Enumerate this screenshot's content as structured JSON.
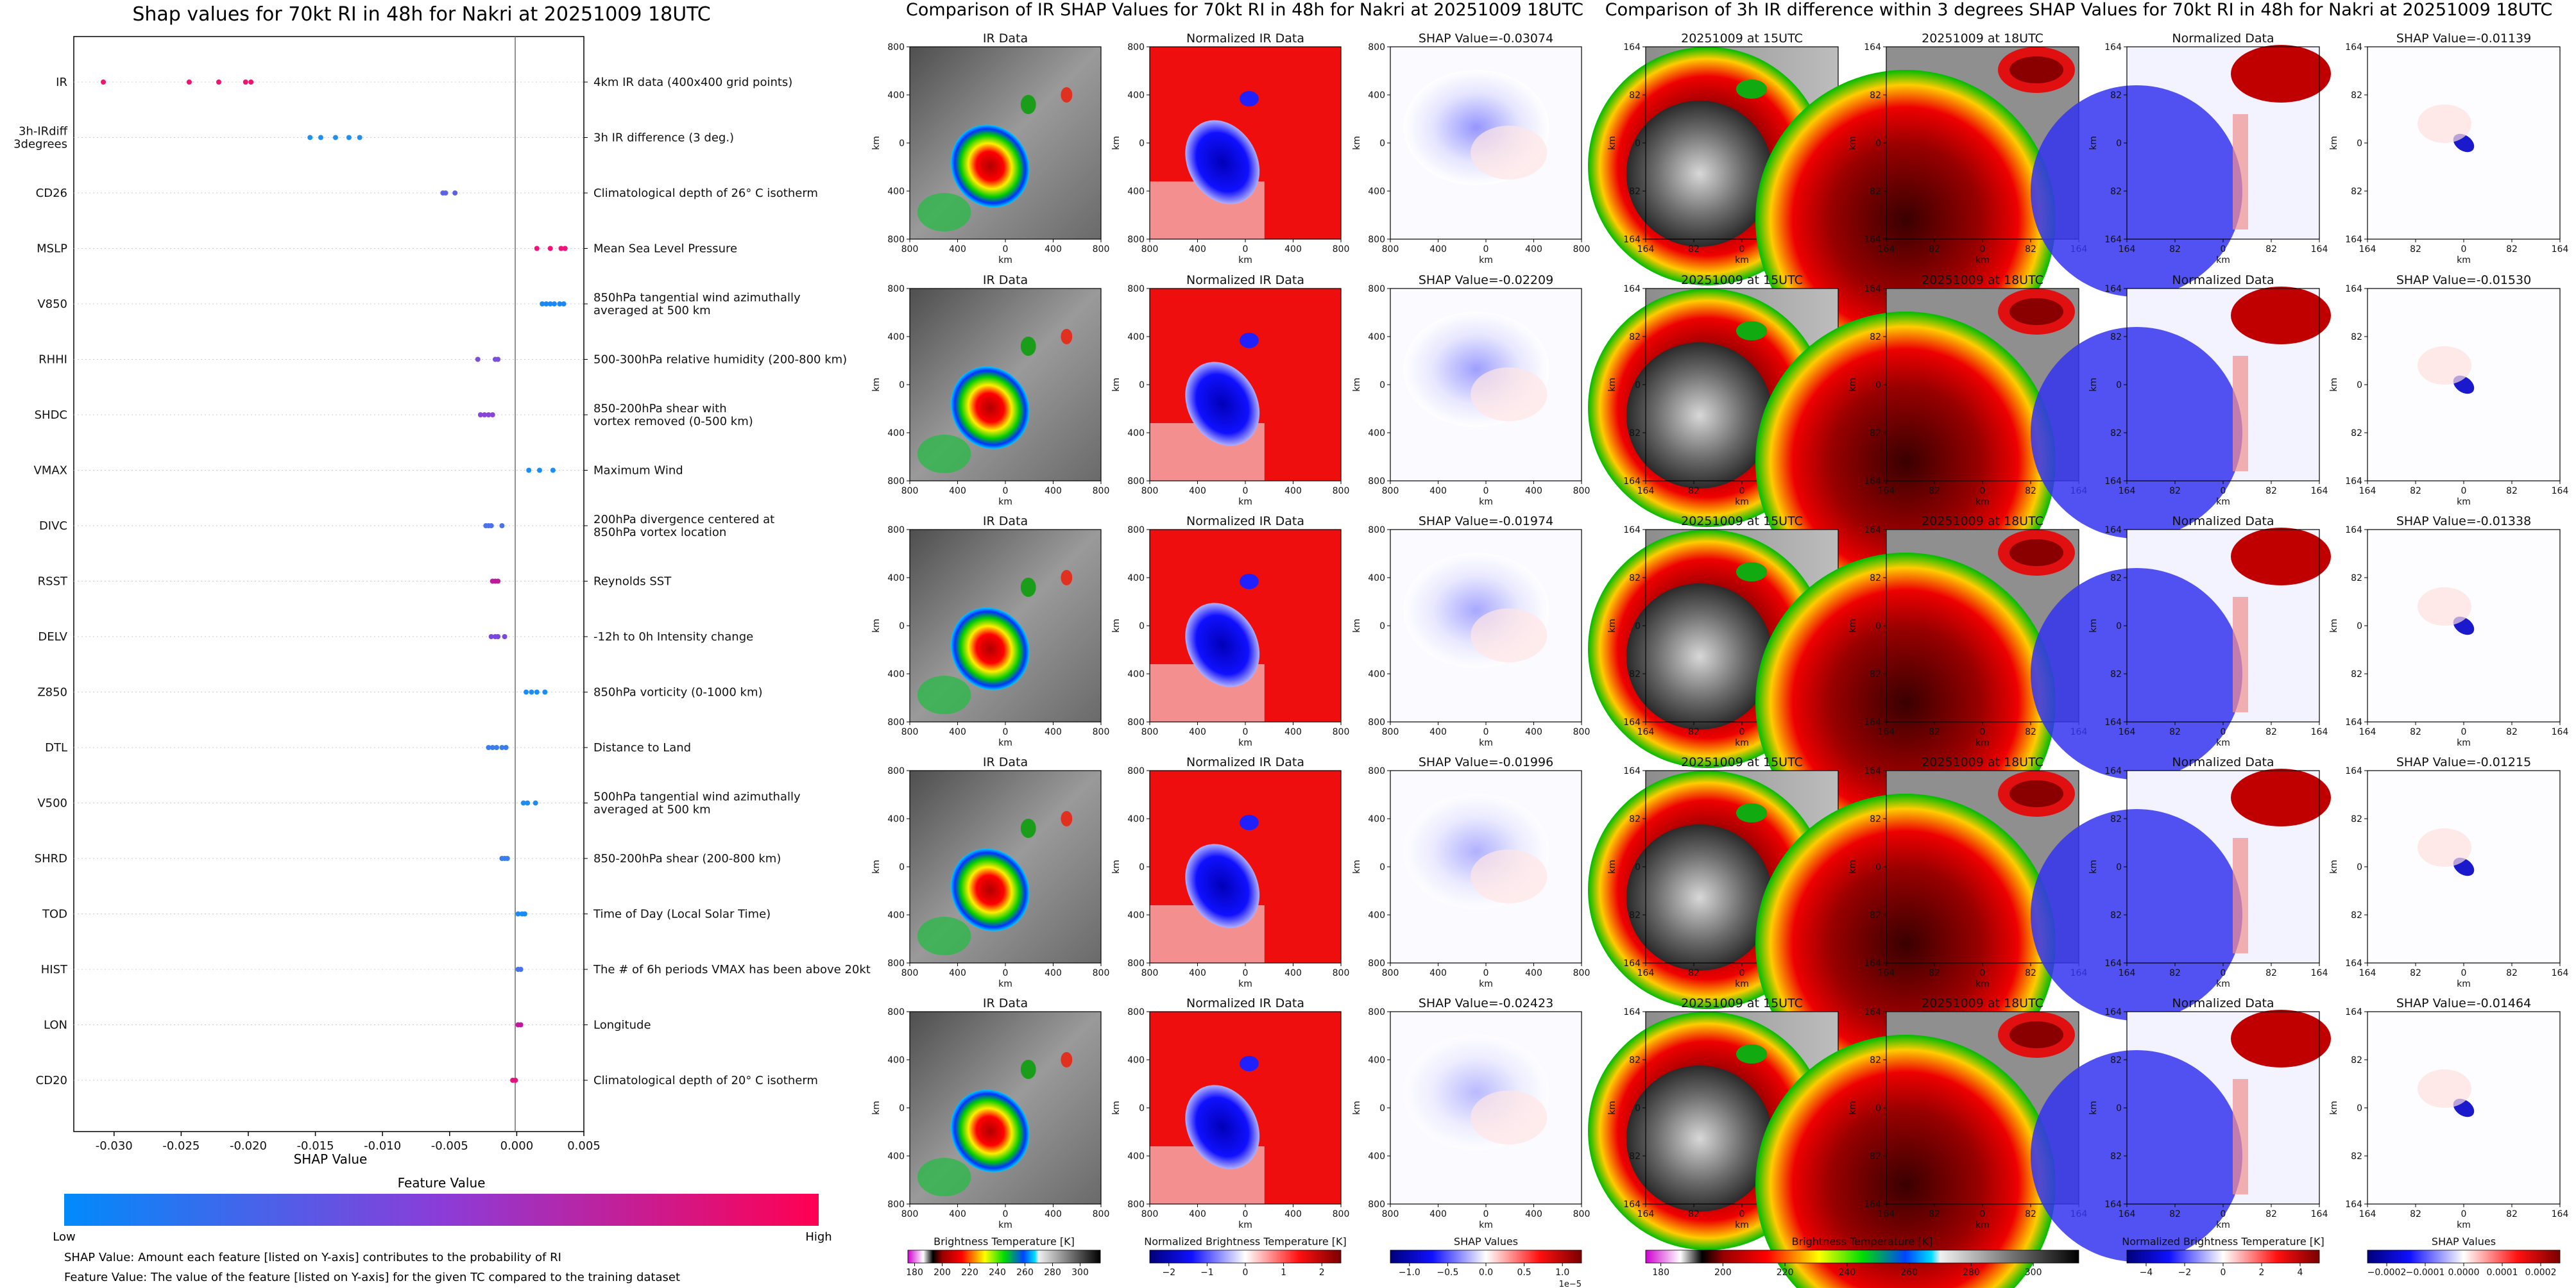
{
  "section_titles": {
    "left": "Shap values for 70kt RI in 48h for Nakri at 20251009 18UTC",
    "middle": "Comparison of IR SHAP Values for 70kt RI in 48h for Nakri at 20251009 18UTC",
    "right": "Comparison of 3h IR difference within 3 degrees SHAP Values for 70kt RI in 48h for Nakri at 20251009 18UTC"
  },
  "footnotes": [
    "SHAP Value: Amount each feature [listed on Y-axis] contributes to the probability of RI",
    "Feature Value: The value of the feature [listed on Y-axis] for the given TC compared to the training dataset"
  ],
  "colors": {
    "feature_low": "#008bfb",
    "feature_high": "#ff0052",
    "zero_line": "#777777"
  },
  "chart_data": [
    {
      "type": "scatter",
      "title": "Shap values for 70kt RI in 48h for Nakri at 20251009 18UTC",
      "xlabel": "SHAP Value",
      "xlim": [
        -0.033,
        0.005
      ],
      "xticks": [
        "-0.030",
        "-0.025",
        "-0.020",
        "-0.015",
        "-0.010",
        "-0.005",
        "0.000",
        "0.005"
      ],
      "xtick_values": [
        -0.03,
        -0.025,
        -0.02,
        -0.015,
        -0.01,
        -0.005,
        0,
        0.005
      ],
      "colorbar": {
        "label": "Feature Value",
        "low": "Low",
        "high": "High"
      },
      "features": [
        {
          "name": "IR",
          "desc": "4km IR data (400x400 grid points)",
          "values": [
            -0.0308,
            -0.0244,
            -0.0222,
            -0.0202,
            -0.0198
          ],
          "color": "#f0146e"
        },
        {
          "name": "3h-IRdiff\n3degrees",
          "desc": "3h IR difference (3 deg.)",
          "values": [
            -0.0154,
            -0.0146,
            -0.0135,
            -0.0125,
            -0.0117
          ],
          "color": "#1f8ff0"
        },
        {
          "name": "CD26",
          "desc": "Climatological depth of 26° C isotherm",
          "values": [
            -0.0055,
            -0.0053,
            -0.0046
          ],
          "color": "#5c62e8"
        },
        {
          "name": "MSLP",
          "desc": "Mean Sea Level Pressure",
          "values": [
            0.0015,
            0.0025,
            0.0033,
            0.0036
          ],
          "color": "#f01478"
        },
        {
          "name": "V850",
          "desc": "850hPa tangential wind azimuthally\naveraged at 500 km",
          "values": [
            0.0019,
            0.0022,
            0.0025,
            0.0028,
            0.0032,
            0.0035
          ],
          "color": "#1a88f5"
        },
        {
          "name": "RHHI",
          "desc": "500-300hPa relative humidity (200-800 km)",
          "values": [
            -0.0029,
            -0.0016,
            -0.0014
          ],
          "color": "#7a4fe0"
        },
        {
          "name": "SHDC",
          "desc": "850-200hPa shear with\nvortex removed (0-500 km)",
          "values": [
            -0.0027,
            -0.0024,
            -0.0021,
            -0.0018
          ],
          "color": "#8a44d8"
        },
        {
          "name": "VMAX",
          "desc": "Maximum Wind",
          "values": [
            0.0009,
            0.0017,
            0.0027
          ],
          "color": "#1c8df3"
        },
        {
          "name": "DIVC",
          "desc": "200hPa divergence centered at\n850hPa vortex location",
          "values": [
            -0.0023,
            -0.0021,
            -0.0019,
            -0.0011
          ],
          "color": "#4a72ea"
        },
        {
          "name": "RSST",
          "desc": "Reynolds SST",
          "values": [
            -0.0018,
            -0.0016,
            -0.0014
          ],
          "color": "#c2189e"
        },
        {
          "name": "DELV",
          "desc": "-12h to 0h Intensity change",
          "values": [
            -0.0019,
            -0.0016,
            -0.0014,
            -0.0009
          ],
          "color": "#7b48de"
        },
        {
          "name": "Z850",
          "desc": "850hPa vorticity (0-1000 km)",
          "values": [
            0.0007,
            0.0011,
            0.0015,
            0.0021
          ],
          "color": "#1c8df3"
        },
        {
          "name": "DTL",
          "desc": "Distance to Land",
          "values": [
            -0.0021,
            -0.0018,
            -0.0015,
            -0.0011,
            -0.0008
          ],
          "color": "#3a7ded"
        },
        {
          "name": "V500",
          "desc": "500hPa tangential wind azimuthally\naveraged at 500 km",
          "values": [
            0.0005,
            0.0008,
            0.0014
          ],
          "color": "#1c8df3"
        },
        {
          "name": "SHRD",
          "desc": "850-200hPa shear (200-800 km)",
          "values": [
            -0.0011,
            -0.0009,
            -0.0007
          ],
          "color": "#3a7ded"
        },
        {
          "name": "TOD",
          "desc": "Time of Day (Local Solar Time)",
          "values": [
            0.0001,
            0.0004,
            0.0006
          ],
          "color": "#1a8af5"
        },
        {
          "name": "HIST",
          "desc": "The # of 6h periods VMAX has been above 20kt",
          "values": [
            0.0001,
            0.0003
          ],
          "color": "#4a72ea"
        },
        {
          "name": "LON",
          "desc": "Longitude",
          "values": [
            0.0001,
            0.0003
          ],
          "color": "#c2189e"
        },
        {
          "name": "CD20",
          "desc": "Climatological depth of 20° C isotherm",
          "values": [
            -0.0003,
            -0.0001
          ],
          "color": "#e0147c"
        }
      ]
    },
    {
      "type": "heatmap",
      "title": "Comparison of IR SHAP Values for 70kt RI in 48h for Nakri at 20251009 18UTC",
      "rows": 5,
      "panel_titles": [
        "IR Data",
        "Normalized IR Data"
      ],
      "shap_titles": [
        "SHAP Value=-0.03074",
        "SHAP Value=-0.02209",
        "SHAP Value=-0.01974",
        "SHAP Value=-0.01996",
        "SHAP Value=-0.02423"
      ],
      "axis_label": "km",
      "ticks_x": [
        "800",
        "400",
        "0",
        "400",
        "800"
      ],
      "ticks_y": [
        "800",
        "400",
        "0",
        "400",
        "800"
      ],
      "colorbars": [
        {
          "label": "Brightness Temperature [K]",
          "ticks": [
            "180",
            "200",
            "220",
            "240",
            "260",
            "280",
            "300"
          ],
          "scale": "ir"
        },
        {
          "label": "Normalized Brightness Temperature [K]",
          "ticks": [
            "−2",
            "−1",
            "0",
            "1",
            "2"
          ],
          "scale": "diverging"
        },
        {
          "label": "SHAP Values",
          "ticks": [
            "−1.0",
            "−0.5",
            "0.0",
            "0.5",
            "1.0"
          ],
          "scale": "diverging",
          "offset": "1e−5"
        }
      ]
    },
    {
      "type": "heatmap",
      "title": "Comparison of 3h IR difference within 3 degrees SHAP Values for 70kt RI in 48h for Nakri at 20251009 18UTC",
      "rows": 5,
      "panel_titles": [
        "20251009 at 15UTC",
        "20251009 at 18UTC",
        "Normalized Data"
      ],
      "shap_titles": [
        "SHAP Value=-0.01139",
        "SHAP Value=-0.01530",
        "SHAP Value=-0.01338",
        "SHAP Value=-0.01215",
        "SHAP Value=-0.01464"
      ],
      "axis_label": "km",
      "ticks_x": [
        "164",
        "82",
        "0",
        "82",
        "164"
      ],
      "ticks_y": [
        "164",
        "82",
        "0",
        "82",
        "164"
      ],
      "colorbars": [
        {
          "label": "Brightness Temperature [K]",
          "ticks": [
            "180",
            "200",
            "220",
            "240",
            "260",
            "280",
            "300"
          ],
          "scale": "ir"
        },
        {
          "label": "Normalized Brightness Temperature [K]",
          "ticks": [
            "−4",
            "−2",
            "0",
            "2",
            "4"
          ],
          "scale": "diverging"
        },
        {
          "label": "SHAP Values",
          "ticks": [
            "−0.0002",
            "−0.0001",
            "0.0000",
            "0.0001",
            "0.0002"
          ],
          "scale": "diverging"
        }
      ]
    }
  ]
}
